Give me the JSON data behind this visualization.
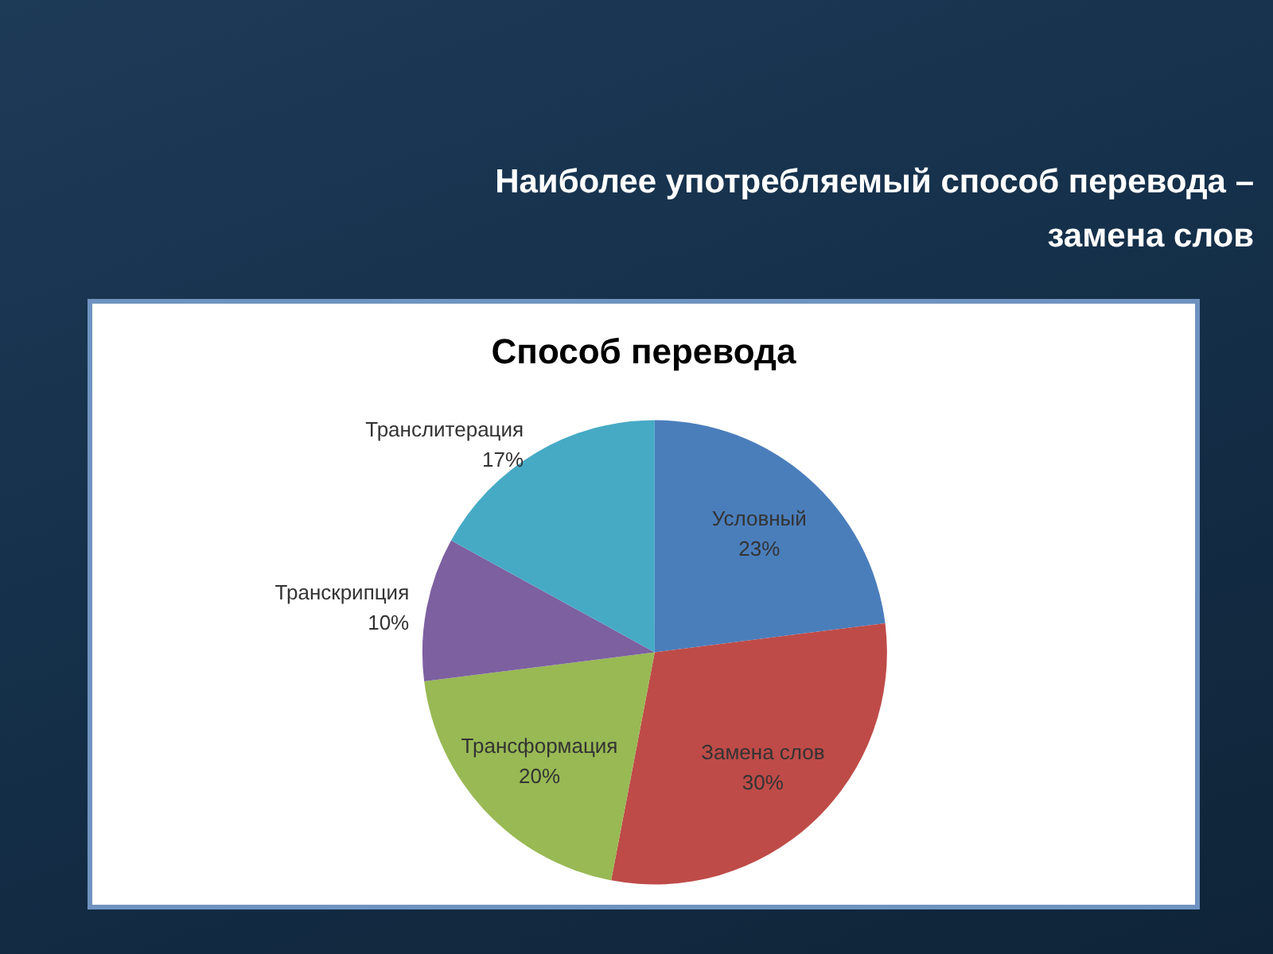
{
  "chart_data": {
    "type": "pie",
    "title": "Наиболее употребляемый способ перевода – замена слов",
    "subtitle": "Способ перевода",
    "categories": [
      "Условный",
      "Замена слов",
      "Трансформация",
      "Транскрипция",
      "Транслитерация"
    ],
    "values": [
      23,
      30,
      20,
      10,
      17
    ],
    "value_labels": [
      "23%",
      "30%",
      "20%",
      "10%",
      "17%"
    ],
    "colors": [
      "#4a7ebb",
      "#be4b48",
      "#98b954",
      "#7d60a0",
      "#46aac5"
    ]
  }
}
